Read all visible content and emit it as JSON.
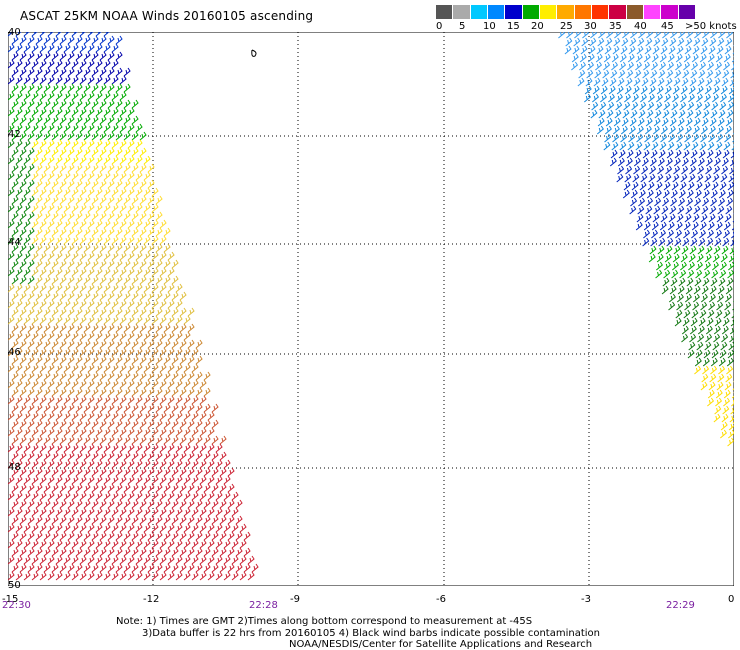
{
  "title": "ASCAT 25KM NOAA Winds 20160105 ascending",
  "legend": {
    "colors": [
      "#555555",
      "#aaaaaa",
      "#00c8ff",
      "#0088ff",
      "#0000cc",
      "#00aa00",
      "#ffee00",
      "#ffaa00",
      "#ff7700",
      "#ff3300",
      "#cc0044",
      "#8b5a2b",
      "#ff44ff",
      "#cc00cc",
      "#6600aa"
    ],
    "labels": [
      "0",
      "5",
      "10",
      "15",
      "20",
      "25",
      "30",
      "35",
      "40",
      "45",
      ">50 knots"
    ]
  },
  "axes": {
    "y_ticks": [
      "40",
      "42",
      "44",
      "46",
      "48",
      "50"
    ],
    "x_ticks": [
      "-15",
      "-12",
      "-9",
      "-6",
      "-3",
      "0"
    ]
  },
  "times": [
    "22:30",
    "22:28",
    "22:29"
  ],
  "notes": {
    "line1": "Note: 1) Times are GMT 2)Times along bottom correspond to measurement at -45S",
    "line2": "3)Data buffer is 22 hrs from 20160105 4) Black wind barbs indicate possible contamination",
    "line3": "NOAA/NESDIS/Center for Satellite Applications and Research"
  }
}
